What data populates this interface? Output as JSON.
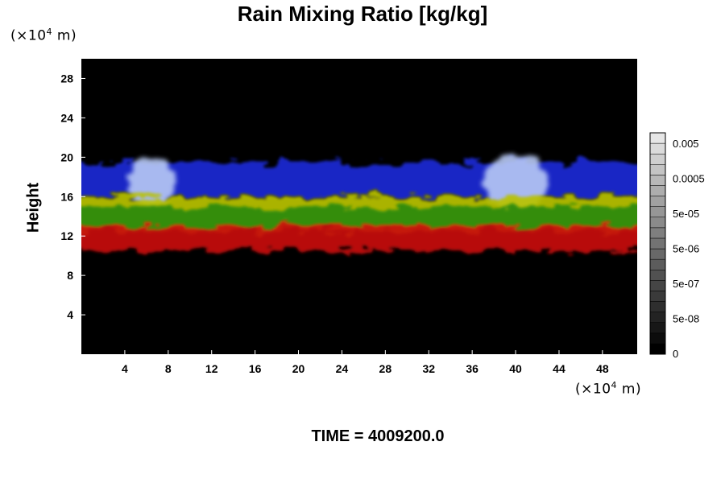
{
  "title": "Rain Mixing Ratio [kg/kg]",
  "time_label": "TIME = 4009200.0",
  "chart_data": {
    "type": "heatmap",
    "title": "Rain Mixing Ratio [kg/kg]",
    "ylabel": "Height",
    "x_unit": {
      "prefix": "(×10",
      "exp": "4",
      "suffix": " m)"
    },
    "y_unit": {
      "prefix": "(×10",
      "exp": "4",
      "suffix": " m)"
    },
    "xlim": [
      0,
      51.2
    ],
    "ylim": [
      0,
      30
    ],
    "x_ticks": [
      4,
      8,
      12,
      16,
      20,
      24,
      28,
      32,
      36,
      40,
      44,
      48
    ],
    "y_ticks": [
      4,
      8,
      12,
      16,
      20,
      24,
      28
    ],
    "colorbar": {
      "labels": [
        "0.005",
        "0.0005",
        "5e-05",
        "5e-06",
        "5e-07",
        "5e-08",
        "0"
      ],
      "levels": 21
    },
    "layers": [
      {
        "color": "#1a2bd6",
        "y_range": [
          16,
          19.5
        ],
        "description_color": "blue"
      },
      {
        "color": "#b8c9f5",
        "y_range": [
          15,
          20
        ],
        "description_color": "light blue"
      },
      {
        "color": "#b9c300",
        "y_range": [
          12.5,
          16
        ],
        "description_color": "yellow-green"
      },
      {
        "color": "#2a8a10",
        "y_range": [
          13,
          15
        ],
        "description_color": "green"
      },
      {
        "color": "#c81010",
        "y_range": [
          10.5,
          13
        ],
        "description_color": "red"
      }
    ]
  }
}
